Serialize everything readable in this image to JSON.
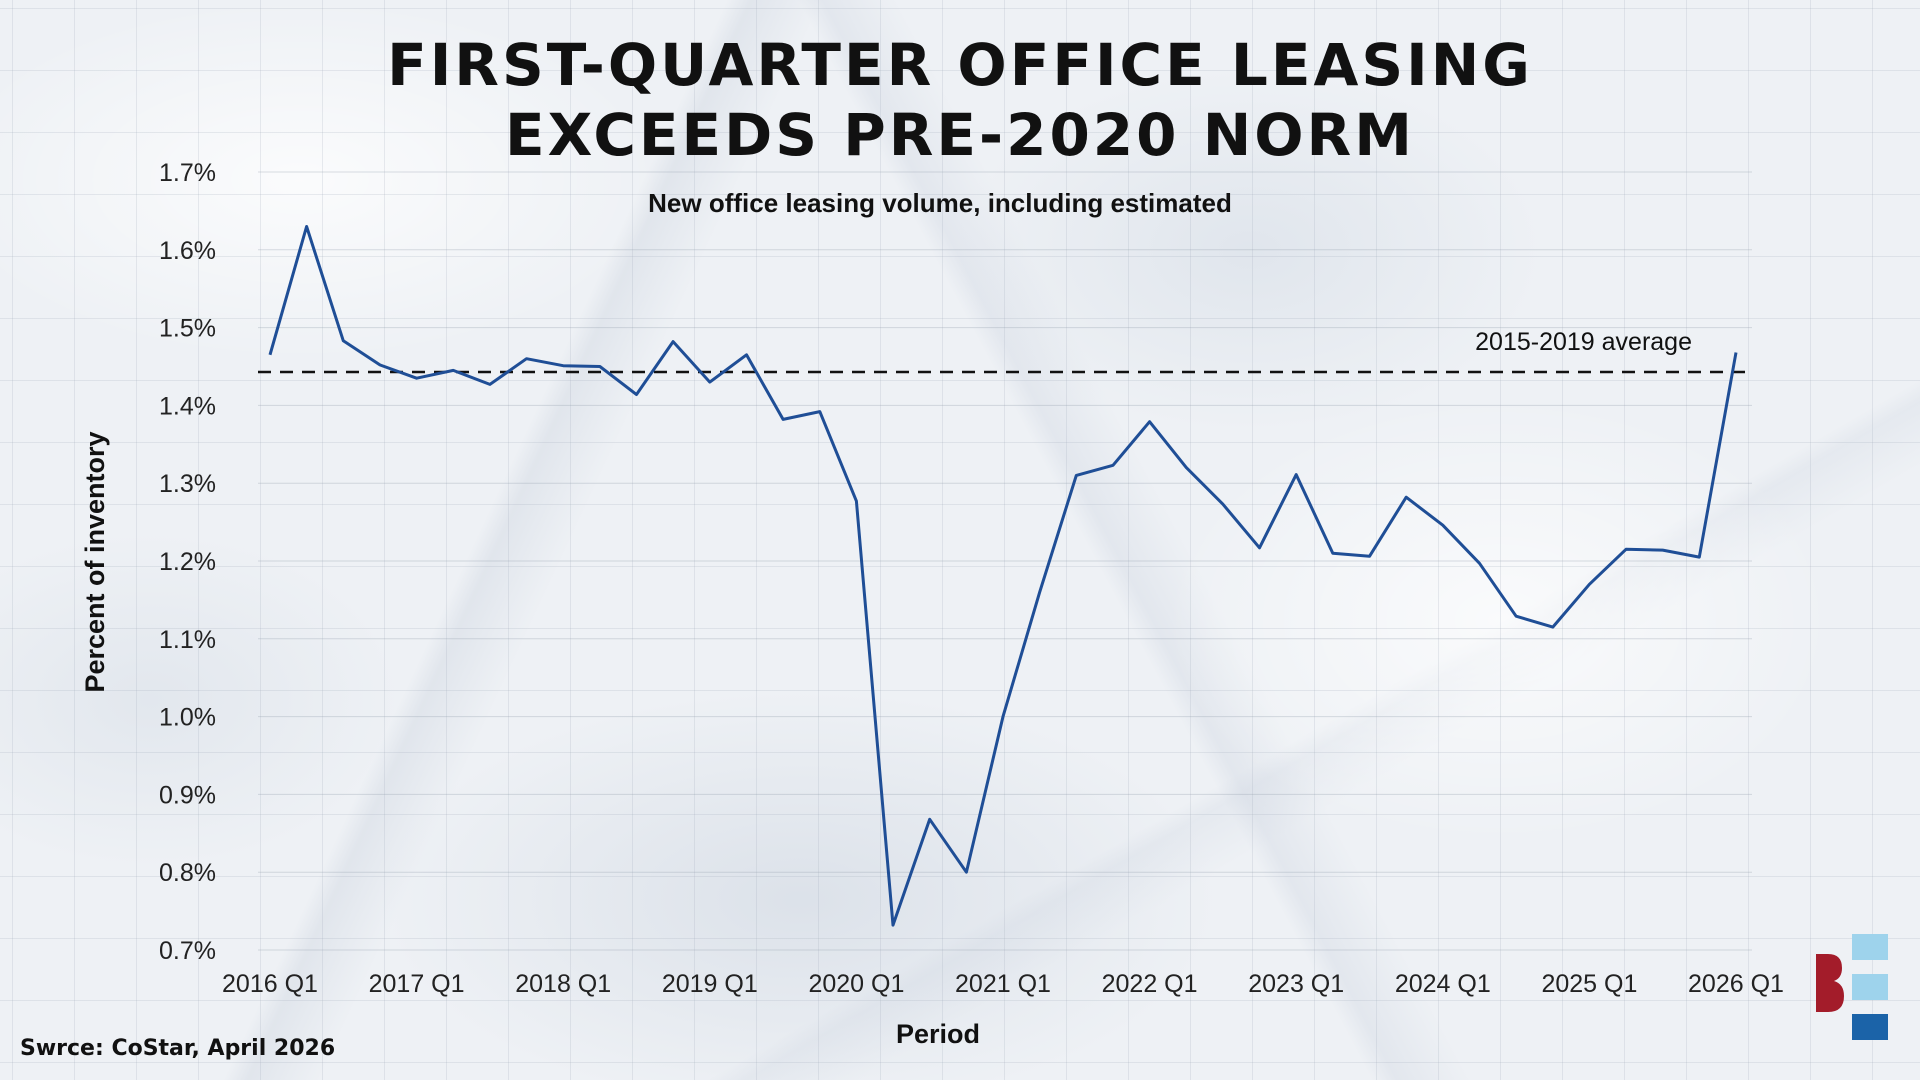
{
  "title_lines": [
    "First-Quarter Office Leasing",
    "Exceeds Pre-2020 Norm"
  ],
  "subtitle": "New office leasing volume, including estimated",
  "source": "Swrce: CoStar, April 2026",
  "colors": {
    "line": "#1f4e96",
    "reference": "#111111",
    "logo_blue_light": "#9ed3ec",
    "logo_blue_dark": "#1b63a8",
    "logo_red": "#a31c2a"
  },
  "chart_data": {
    "type": "line",
    "title": "First-Quarter Office Leasing Exceeds Pre-2020 Norm",
    "subtitle": "New office leasing volume, including estimated",
    "xlabel": "Period",
    "ylabel": "Percent of inventory",
    "ylim": [
      0.7,
      1.7
    ],
    "yticks": [
      0.7,
      0.8,
      0.9,
      1.0,
      1.1,
      1.2,
      1.3,
      1.4,
      1.5,
      1.6,
      1.7
    ],
    "ytick_labels": [
      "0.7%",
      "0.8%",
      "0.9%",
      "1.0%",
      "1.1%",
      "1.2%",
      "1.3%",
      "1.4%",
      "1.5%",
      "1.6%",
      "1.7%"
    ],
    "xtick_labels": [
      "2016 Q1",
      "2017 Q1",
      "2018 Q1",
      "2019 Q1",
      "2020 Q1",
      "2021 Q1",
      "2022 Q1",
      "2023 Q1",
      "2024 Q1",
      "2025 Q1",
      "2026 Q1"
    ],
    "x": [
      "2016 Q1",
      "2016 Q2",
      "2016 Q3",
      "2016 Q4",
      "2017 Q1",
      "2017 Q2",
      "2017 Q3",
      "2017 Q4",
      "2018 Q1",
      "2018 Q2",
      "2018 Q3",
      "2018 Q4",
      "2019 Q1",
      "2019 Q2",
      "2019 Q3",
      "2019 Q4",
      "2020 Q1",
      "2020 Q2",
      "2020 Q3",
      "2020 Q4",
      "2021 Q1",
      "2021 Q2",
      "2021 Q3",
      "2021 Q4",
      "2022 Q1",
      "2022 Q2",
      "2022 Q3",
      "2022 Q4",
      "2023 Q1",
      "2023 Q2",
      "2023 Q3",
      "2023 Q4",
      "2024 Q1",
      "2024 Q2",
      "2024 Q3",
      "2024 Q4",
      "2025 Q1",
      "2025 Q2",
      "2025 Q3",
      "2025 Q4",
      "2026 Q1"
    ],
    "series": [
      {
        "values": [
          1.465,
          1.63,
          1.483,
          1.452,
          1.435,
          1.445,
          1.427,
          1.46,
          1.451,
          1.45,
          1.414,
          1.482,
          1.43,
          1.465,
          1.382,
          1.392,
          1.277,
          0.732,
          0.868,
          0.8,
          1.0,
          1.16,
          1.31,
          1.323,
          1.379,
          1.32,
          1.273,
          1.217,
          1.311,
          1.21,
          1.206,
          1.282,
          1.246,
          1.197,
          1.129,
          1.115,
          1.17,
          1.215,
          1.214,
          1.205,
          1.468
        ]
      }
    ],
    "reference_line": {
      "label": "2015-2019 average",
      "value": 1.443,
      "style": "dashed"
    },
    "grid": true
  }
}
